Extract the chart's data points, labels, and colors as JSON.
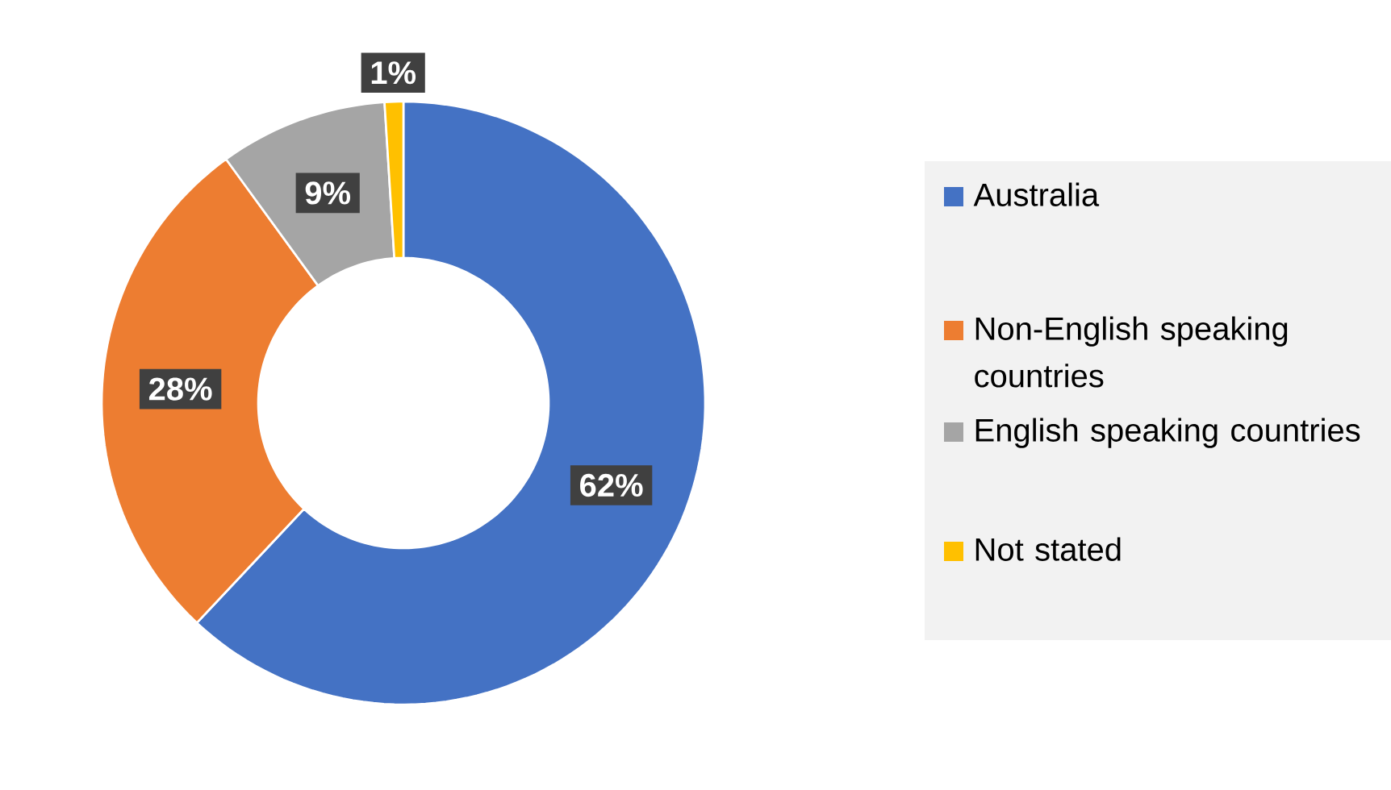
{
  "chart_data": {
    "type": "donut",
    "categories": [
      "Australia",
      "Non-English speaking countries",
      "English speaking countries",
      "Not stated"
    ],
    "values": [
      62,
      28,
      9,
      1
    ],
    "colors": [
      "#4472c4",
      "#ed7d31",
      "#a5a5a5",
      "#ffc000"
    ],
    "value_labels": [
      "62%",
      "28%",
      "9%",
      "1%"
    ],
    "legend": "right"
  }
}
